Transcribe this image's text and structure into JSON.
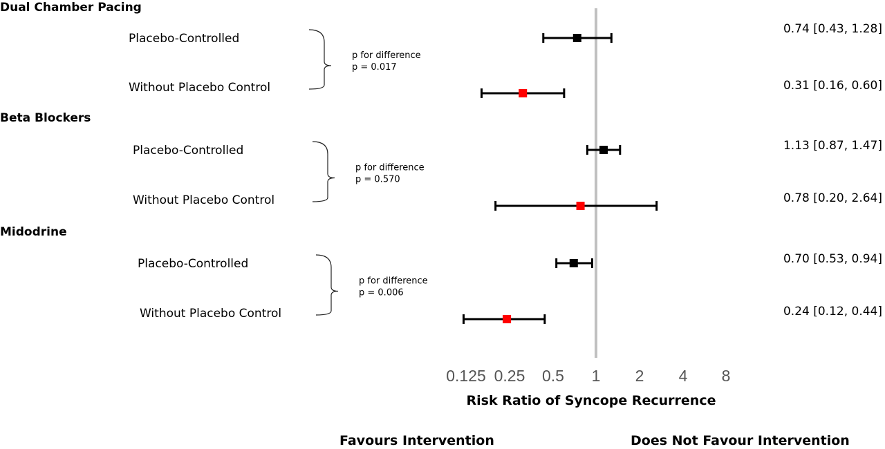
{
  "chart_data": {
    "type": "forest",
    "xlabel": "Risk Ratio of Syncope Recurrence",
    "x_scale": "log2",
    "ticks": [
      "0.125",
      "0.25",
      "0.5",
      "1",
      "2",
      "4",
      "8"
    ],
    "tick_values": [
      0.125,
      0.25,
      0.5,
      1,
      2,
      4,
      8
    ],
    "reference_line": 1,
    "favours_left": "Favours Intervention",
    "favours_right": "Does Not  Favour Intervention",
    "colors": {
      "placebo": "#000000",
      "no_placebo": "#ff0000",
      "reference": "#c0c0c0"
    },
    "groups": [
      {
        "name": "Dual Chamber Pacing",
        "p_label": "p for difference",
        "p_value": "p = 0.017",
        "rows": [
          {
            "label": "Placebo-Controlled",
            "rr": 0.74,
            "lo": 0.43,
            "hi": 1.28,
            "text": "0.74 [0.43, 1.28]",
            "color": "#000000"
          },
          {
            "label": "Without Placebo Control",
            "rr": 0.31,
            "lo": 0.16,
            "hi": 0.6,
            "text": "0.31 [0.16, 0.60]",
            "color": "#ff0000"
          }
        ]
      },
      {
        "name": "Beta Blockers",
        "p_label": "p for difference",
        "p_value": "p = 0.570",
        "rows": [
          {
            "label": "Placebo-Controlled",
            "rr": 1.13,
            "lo": 0.87,
            "hi": 1.47,
            "text": "1.13 [0.87, 1.47]",
            "color": "#000000"
          },
          {
            "label": "Without Placebo Control",
            "rr": 0.78,
            "lo": 0.2,
            "hi": 2.64,
            "text": "0.78 [0.20, 2.64]",
            "color": "#ff0000"
          }
        ]
      },
      {
        "name": "Midodrine",
        "p_label": "p for difference",
        "p_value": "p = 0.006",
        "rows": [
          {
            "label": "Placebo-Controlled",
            "rr": 0.7,
            "lo": 0.53,
            "hi": 0.94,
            "text": "0.70 [0.53, 0.94]",
            "color": "#000000"
          },
          {
            "label": "Without Placebo Control",
            "rr": 0.24,
            "lo": 0.12,
            "hi": 0.44,
            "text": "0.24 [0.12, 0.44]",
            "color": "#ff0000"
          }
        ]
      }
    ]
  }
}
